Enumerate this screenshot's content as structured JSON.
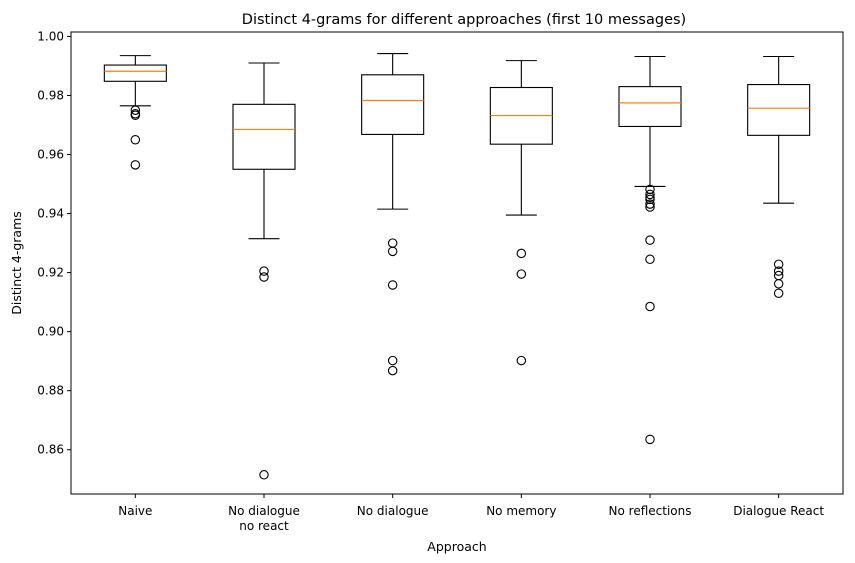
{
  "chart_data": {
    "type": "box",
    "title": "Distinct 4-grams for different approaches (first 10 messages)",
    "xlabel": "Approach",
    "ylabel": "Distinct 4-grams",
    "ylim": [
      0.845,
      1.0015
    ],
    "yticks": [
      0.86,
      0.88,
      0.9,
      0.92,
      0.94,
      0.96,
      0.98,
      1.0
    ],
    "ytick_labels": [
      "0.86",
      "0.88",
      "0.90",
      "0.92",
      "0.94",
      "0.96",
      "0.98",
      "1.00"
    ],
    "grid": false,
    "categories": [
      {
        "label": [
          "Naive"
        ],
        "whisker_low": 0.9765,
        "q1": 0.9848,
        "median": 0.9882,
        "q3": 0.9903,
        "whisker_high": 0.9935,
        "outliers": [
          0.975,
          0.9738,
          0.9733,
          0.965,
          0.9565
        ]
      },
      {
        "label": [
          "No dialogue",
          "no react"
        ],
        "whisker_low": 0.9315,
        "q1": 0.955,
        "median": 0.9685,
        "q3": 0.977,
        "whisker_high": 0.991,
        "outliers": [
          0.9205,
          0.9185,
          0.8515
        ]
      },
      {
        "label": [
          "No dialogue"
        ],
        "whisker_low": 0.9415,
        "q1": 0.9668,
        "median": 0.9783,
        "q3": 0.987,
        "whisker_high": 0.9942,
        "outliers": [
          0.93,
          0.9272,
          0.9158,
          0.8902,
          0.8868
        ]
      },
      {
        "label": [
          "No memory"
        ],
        "whisker_low": 0.9395,
        "q1": 0.9635,
        "median": 0.9732,
        "q3": 0.9827,
        "whisker_high": 0.9918,
        "outliers": [
          0.9265,
          0.9195,
          0.8902
        ]
      },
      {
        "label": [
          "No reflections"
        ],
        "whisker_low": 0.9492,
        "q1": 0.9695,
        "median": 0.9775,
        "q3": 0.983,
        "whisker_high": 0.9932,
        "outliers": [
          0.9482,
          0.9465,
          0.9455,
          0.9448,
          0.9432,
          0.9422,
          0.931,
          0.9245,
          0.9085,
          0.8635
        ]
      },
      {
        "label": [
          "Dialogue React"
        ],
        "whisker_low": 0.9435,
        "q1": 0.9665,
        "median": 0.9757,
        "q3": 0.9837,
        "whisker_high": 0.9932,
        "outliers": [
          0.9228,
          0.9205,
          0.919,
          0.9162,
          0.913
        ]
      }
    ],
    "colors": {
      "box": "#000000",
      "median": "#ff7f0e",
      "flier": "#000000"
    }
  }
}
